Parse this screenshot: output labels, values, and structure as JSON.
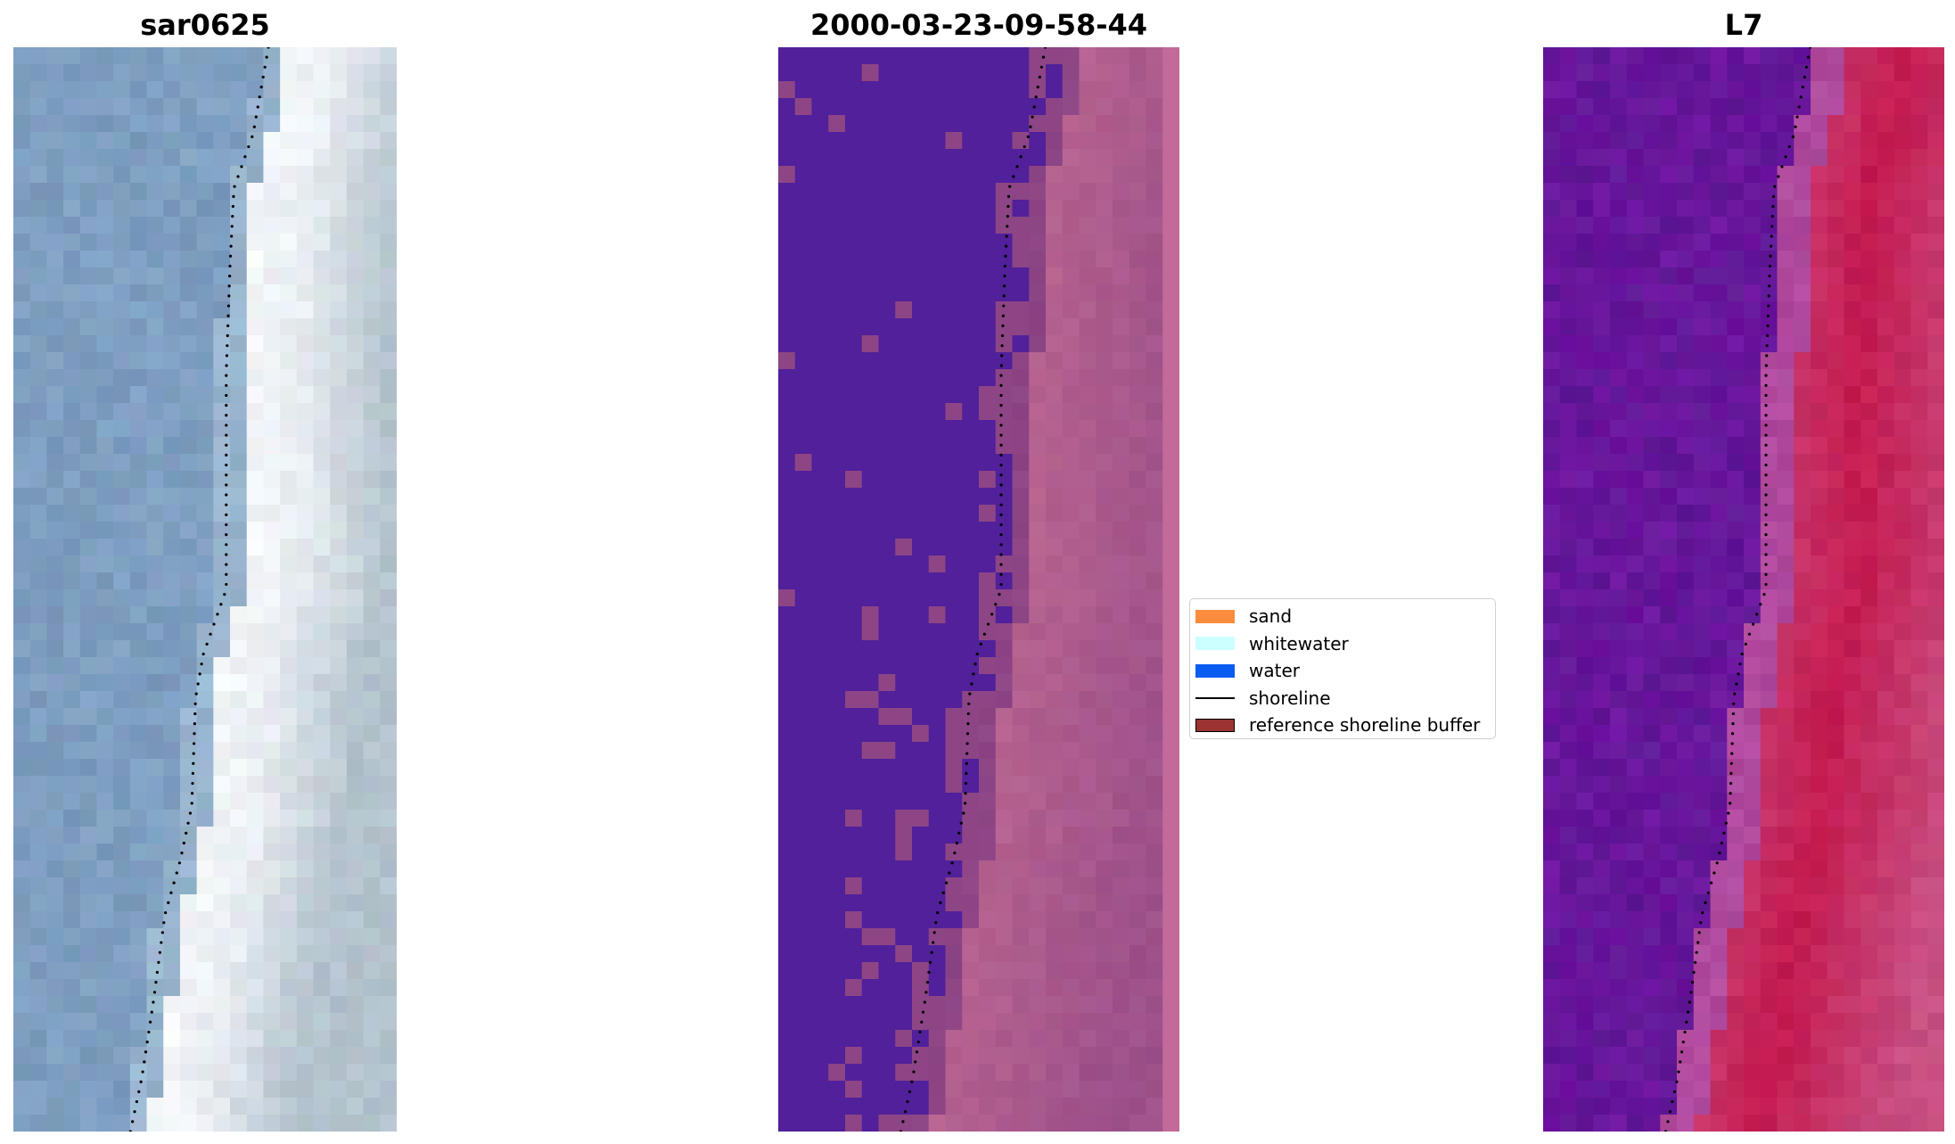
{
  "panels": [
    {
      "title": "sar0625",
      "kind": "rgb"
    },
    {
      "title": "2000-03-23-09-58-44",
      "kind": "classified"
    },
    {
      "title": "L7",
      "kind": "mndwi"
    }
  ],
  "legend": {
    "items": [
      {
        "label": "sand",
        "color": "#fb8c3e",
        "type": "patch"
      },
      {
        "label": "whitewater",
        "color": "#ccffff",
        "type": "patch"
      },
      {
        "label": "water",
        "color": "#0a5cf0",
        "type": "patch"
      },
      {
        "label": "shoreline",
        "color": "#000000",
        "type": "line"
      },
      {
        "label": "reference shoreline buffer",
        "color": "#9b3333",
        "type": "patch-bordered"
      }
    ]
  },
  "colors": {
    "rgb_water": "#7e9ec0",
    "rgb_beach": "#e6ebf0",
    "class_water": "#51209a",
    "class_buffer": "#8d4585",
    "class_land": "#b5628f",
    "class_land_edge": "#c26b9a",
    "mndwi_water": "#6e14a0",
    "mndwi_edge": "#b04a9e",
    "mndwi_land": "#c41a50",
    "shoreline": "#000000"
  }
}
